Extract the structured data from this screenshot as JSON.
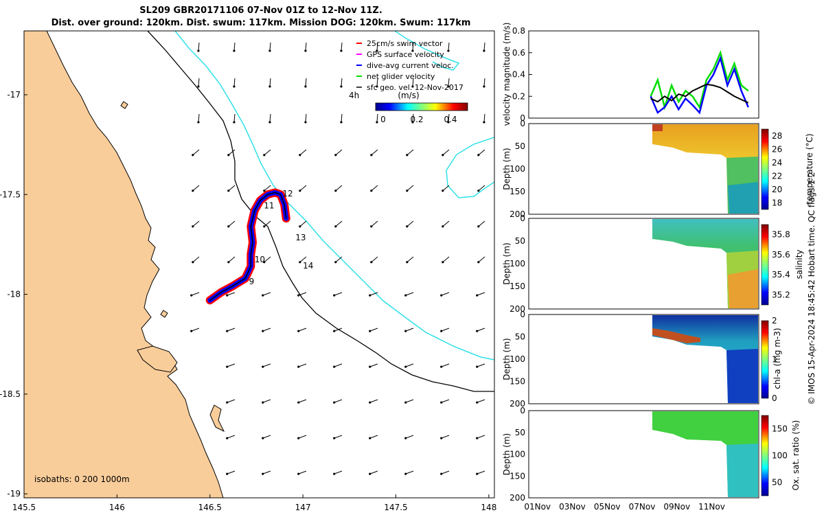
{
  "title_line1": "SL209 GBR20171106 07-Nov 01Z to 12-Nov 11Z.",
  "title_line2": "Dist. over ground: 120km. Dist. swum: 117km. Mission DOG: 120km. Swum: 117km",
  "colors": {
    "land": "#F9CD9A",
    "isobath200": "#000000",
    "isobath1000": "#2FE0E8",
    "swim": "#FF0000",
    "gps": "#FF00FF",
    "diveavg": "#0000FF",
    "net": "#00DD00",
    "sfcgeo": "#000000"
  },
  "map": {
    "lon_ticks": [
      "145.5",
      "146",
      "146.5",
      "147",
      "147.5",
      "148"
    ],
    "lat_ticks": [
      "-17",
      "-17.5",
      "-18",
      "-18.5",
      "-19"
    ],
    "lon_range": [
      145.5,
      148.03
    ],
    "lat_range": [
      -16.68,
      -19.02
    ],
    "legend": [
      "25cm/s swim vector",
      "GPS surface velocity",
      "dive-avg current veloc.",
      "net glider velocity",
      "sfc geo. vel. 12-Nov-2017"
    ],
    "legend_4h": "4h",
    "colorbar_label": "(m/s)",
    "colorbar_ticks": [
      "0",
      "0.2",
      "0.4"
    ],
    "day_labels": [
      {
        "label": "9",
        "lon": 146.71,
        "lat": -17.95
      },
      {
        "label": "10",
        "lon": 146.74,
        "lat": -17.84
      },
      {
        "label": "11",
        "lon": 146.79,
        "lat": -17.57
      },
      {
        "label": "12",
        "lon": 146.89,
        "lat": -17.51
      },
      {
        "label": "13",
        "lon": 146.96,
        "lat": -17.73
      },
      {
        "label": "14",
        "lon": 147.0,
        "lat": -17.87
      }
    ],
    "isobath_label": "isobaths: 0   200  1000m",
    "track": [
      [
        146.5,
        -18.03
      ],
      [
        146.56,
        -17.99
      ],
      [
        146.62,
        -17.96
      ],
      [
        146.69,
        -17.92
      ],
      [
        146.72,
        -17.86
      ],
      [
        146.72,
        -17.8
      ],
      [
        146.73,
        -17.74
      ],
      [
        146.72,
        -17.66
      ],
      [
        146.74,
        -17.58
      ],
      [
        146.77,
        -17.53
      ],
      [
        146.81,
        -17.5
      ],
      [
        146.85,
        -17.49
      ],
      [
        146.88,
        -17.5
      ],
      [
        146.9,
        -17.55
      ],
      [
        146.91,
        -17.62
      ]
    ]
  },
  "side": {
    "x_ticks": [
      "01Nov",
      "03Nov",
      "05Nov",
      "07Nov",
      "09Nov",
      "11Nov"
    ],
    "vel_ylabel": "velocity magnitude (m/s)",
    "vel_yticks": [
      "0",
      "0.2",
      "0.4",
      "0.6",
      "0.8"
    ],
    "depth_ylabel": "Depth (m)",
    "depth_ticks": [
      "0",
      "50",
      "100",
      "150",
      "200"
    ],
    "panels": [
      {
        "label": "temperature (°C)",
        "ticks": [
          "18",
          "20",
          "22",
          "24",
          "26",
          "28"
        ]
      },
      {
        "label": "salinity",
        "ticks": [
          "35.2",
          "35.4",
          "35.6",
          "35.8"
        ]
      },
      {
        "label": "chl-a (mg m-3)",
        "ticks": [
          "0",
          "1",
          "2"
        ]
      },
      {
        "label": "Ox. sat. ratio (%)",
        "ticks": [
          "50",
          "100",
          "150"
        ]
      }
    ],
    "credit": "© IMOS 15-Apr-2024 18:45:42 Hobart time. QC flags 1  2"
  },
  "chart_data": {
    "type": "line",
    "title": "SL209 GBR20171106 07-Nov 01Z to 12-Nov 11Z.",
    "xlabel": "",
    "ylabel": "velocity magnitude (m/s)",
    "ylim": [
      0,
      0.8
    ],
    "x": [
      7.0,
      7.4,
      7.8,
      8.2,
      8.6,
      9.0,
      9.4,
      9.8,
      10.2,
      10.6,
      11.0,
      11.4,
      11.8,
      12.2,
      12.6
    ],
    "series": [
      {
        "name": "sfc geo. vel.",
        "values": [
          0.18,
          0.15,
          0.2,
          0.16,
          0.22,
          0.2,
          0.25,
          0.28,
          0.31,
          0.3,
          0.28,
          0.24,
          0.2,
          0.17,
          0.14
        ]
      },
      {
        "name": "dive-avg current veloc.",
        "values": [
          0.2,
          0.05,
          0.1,
          0.2,
          0.08,
          0.18,
          0.12,
          0.05,
          0.3,
          0.4,
          0.55,
          0.3,
          0.45,
          0.25,
          0.1
        ]
      },
      {
        "name": "net glider velocity",
        "values": [
          0.2,
          0.35,
          0.1,
          0.3,
          0.15,
          0.25,
          0.2,
          0.1,
          0.35,
          0.45,
          0.6,
          0.35,
          0.5,
          0.3,
          0.25
        ]
      }
    ]
  }
}
